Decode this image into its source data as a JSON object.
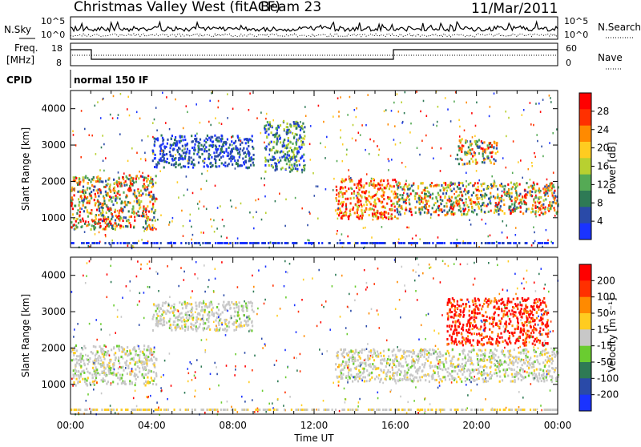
{
  "header": {
    "title": "Christmas Valley West (fitACF)",
    "beam": "Beam 23",
    "date": "11/Mar/2011"
  },
  "top_panels": {
    "nsky_label": "N.Sky",
    "nsky_ticks": [
      "10^5",
      "10^0"
    ],
    "nsearch_label": "N.Search",
    "nsearch_ticks": [
      "10^5",
      "10^0"
    ],
    "freq_label": [
      "Freq.",
      "[MHz]"
    ],
    "freq_ticks": [
      "18",
      "8"
    ],
    "nave_label": "Nave",
    "nave_ticks": [
      "60",
      "0"
    ],
    "cpid_label": "CPID",
    "cpid_value": "normal 150 IF"
  },
  "colors": {
    "power_scale": [
      "#1a33ff",
      "#2a4aa8",
      "#2e7a55",
      "#55aa55",
      "#b8d030",
      "#ffcc20",
      "#ff8a00",
      "#ff3000",
      "#ff0000"
    ],
    "velocity_scale": [
      "#1a33ff",
      "#2a4aa8",
      "#2e7a55",
      "#6acc30",
      "#c8c8c8",
      "#ffcc20",
      "#ff8a00",
      "#ff3000",
      "#ff0000"
    ]
  },
  "chart_data": [
    {
      "type": "heatmap",
      "title": "",
      "xlabel": "Time UT",
      "ylabel": "Slant Range [km]",
      "x_ticks": [
        "00:00",
        "04:00",
        "08:00",
        "12:00",
        "16:00",
        "20:00",
        "00:00"
      ],
      "y_ticks": [
        1000,
        2000,
        3000,
        4000
      ],
      "ylim": [
        180,
        4500
      ],
      "colorbar": {
        "label": "Power [dB]",
        "ticks": [
          "4",
          "8",
          "12",
          "16",
          "20",
          "24",
          "28"
        ]
      },
      "regions": [
        {
          "t": [
            0.0,
            4.2
          ],
          "r": [
            700,
            2200
          ],
          "level": "mid-high"
        },
        {
          "t": [
            4.0,
            9.0
          ],
          "r": [
            2400,
            3300
          ],
          "level": "low"
        },
        {
          "t": [
            9.5,
            11.5
          ],
          "r": [
            2300,
            3700
          ],
          "level": "low-mid"
        },
        {
          "t": [
            13.0,
            16.0
          ],
          "r": [
            1000,
            2100
          ],
          "level": "high"
        },
        {
          "t": [
            16.0,
            24.0
          ],
          "r": [
            1100,
            2000
          ],
          "level": "mid-high"
        },
        {
          "t": [
            19.0,
            21.0
          ],
          "r": [
            2500,
            3200
          ],
          "level": "mid-high"
        }
      ]
    },
    {
      "type": "heatmap",
      "title": "",
      "xlabel": "Time UT",
      "ylabel": "Slant Range [km]",
      "x_ticks": [
        "00:00",
        "04:00",
        "08:00",
        "12:00",
        "16:00",
        "20:00",
        "00:00"
      ],
      "y_ticks": [
        1000,
        2000,
        3000,
        4000
      ],
      "ylim": [
        180,
        4500
      ],
      "colorbar": {
        "label": "Velocity [m s⁻¹]",
        "ticks": [
          "200",
          "100",
          "50",
          "15",
          "-15",
          "-50",
          "-100",
          "-200"
        ]
      },
      "regions": [
        {
          "t": [
            0.0,
            4.2
          ],
          "r": [
            1000,
            2100
          ],
          "level": "ground-scatter"
        },
        {
          "t": [
            4.0,
            9.0
          ],
          "r": [
            2500,
            3300
          ],
          "level": "ground-scatter"
        },
        {
          "t": [
            13.0,
            24.0
          ],
          "r": [
            1100,
            2000
          ],
          "level": "ground-scatter"
        },
        {
          "t": [
            18.5,
            23.5
          ],
          "r": [
            2100,
            3400
          ],
          "level": "negative-high"
        }
      ]
    }
  ]
}
